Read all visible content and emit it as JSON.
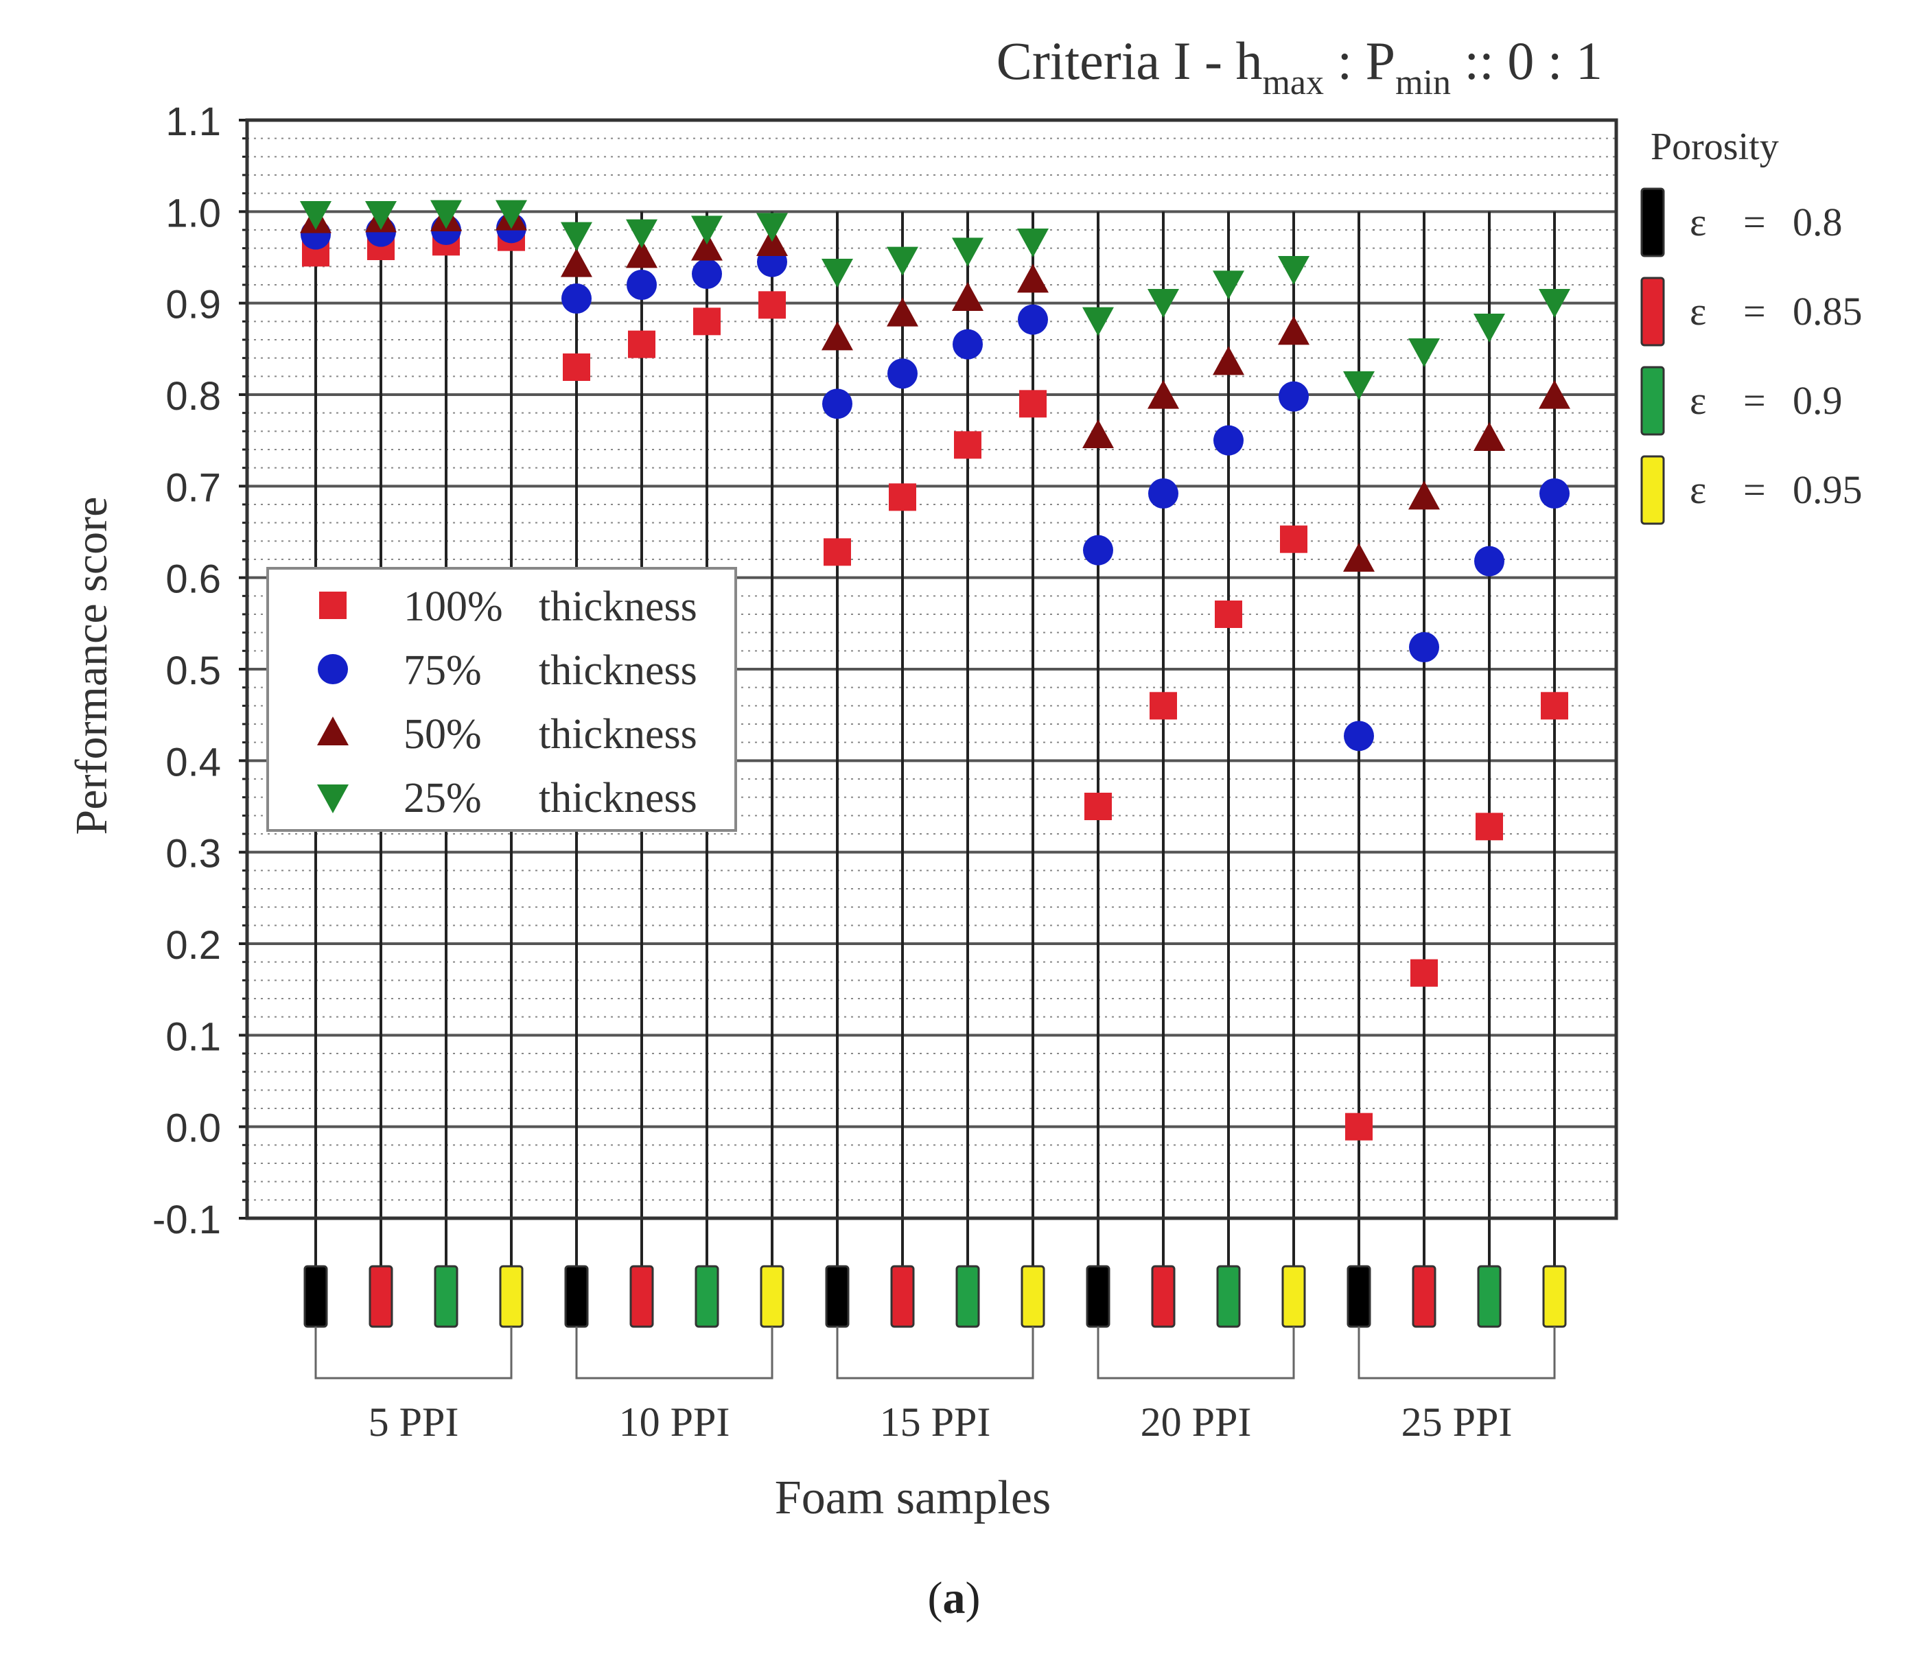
{
  "chart_data": {
    "type": "scatter",
    "title": {
      "main": "Criteria I - h",
      "sub1": "max",
      "mid": " : P",
      "sub2": "min",
      "end": " :: 0 : 1"
    },
    "xlabel": "Foam samples",
    "ylabel": "Performance score",
    "ylim": [
      -0.1,
      1.1
    ],
    "yticks": [
      "1.1",
      "1.0",
      "0.9",
      "0.8",
      "0.7",
      "0.6",
      "0.5",
      "0.4",
      "0.3",
      "0.2",
      "0.1",
      "0.0",
      "-0.1"
    ],
    "grid": true,
    "groups": [
      "5 PPI",
      "10 PPI",
      "15 PPI",
      "20 PPI",
      "25 PPI"
    ],
    "porosity_per_group": [
      "0.8",
      "0.85",
      "0.9",
      "0.95"
    ],
    "porosity_legend": {
      "title": "Porosity",
      "entries": [
        {
          "symbol": "ε",
          "eq": "=",
          "value": "0.8",
          "color": "#000000"
        },
        {
          "symbol": "ε",
          "eq": "=",
          "value": "0.85",
          "color": "#e0232e"
        },
        {
          "symbol": "ε",
          "eq": "=",
          "value": "0.9",
          "color": "#22a046"
        },
        {
          "symbol": "ε",
          "eq": "=",
          "value": "0.95",
          "color": "#f5ec1c"
        }
      ]
    },
    "series": [
      {
        "name": "100% thickness",
        "pct": "100%",
        "word": "thickness",
        "marker": "square",
        "color": "#e0232e",
        "values": [
          0.955,
          0.962,
          0.967,
          0.972,
          0.83,
          0.855,
          0.88,
          0.898,
          0.628,
          0.688,
          0.745,
          0.79,
          0.35,
          0.46,
          0.56,
          0.642,
          0.0,
          0.168,
          0.328,
          0.46
        ]
      },
      {
        "name": "75% thickness",
        "pct": "75%",
        "word": "thickness",
        "marker": "circle",
        "color": "#1420c8",
        "values": [
          0.975,
          0.978,
          0.98,
          0.982,
          0.905,
          0.92,
          0.932,
          0.945,
          0.79,
          0.823,
          0.855,
          0.882,
          0.63,
          0.692,
          0.75,
          0.798,
          0.427,
          0.524,
          0.618,
          0.692
        ]
      },
      {
        "name": "50% thickness",
        "pct": "50%",
        "word": "thickness",
        "marker": "triangle-up",
        "color": "#7a0c0c",
        "values": [
          0.99,
          0.991,
          0.992,
          0.993,
          0.942,
          0.952,
          0.96,
          0.965,
          0.862,
          0.888,
          0.905,
          0.925,
          0.755,
          0.798,
          0.835,
          0.868,
          0.62,
          0.688,
          0.752,
          0.798
        ]
      },
      {
        "name": "25% thickness",
        "pct": "25%",
        "word": "thickness",
        "marker": "triangle-down",
        "color": "#1e8a2e",
        "values": [
          0.998,
          0.998,
          0.999,
          0.999,
          0.975,
          0.978,
          0.982,
          0.985,
          0.935,
          0.948,
          0.958,
          0.968,
          0.882,
          0.902,
          0.922,
          0.938,
          0.812,
          0.848,
          0.875,
          0.902
        ]
      }
    ]
  },
  "caption": {
    "open": "(",
    "label": "a",
    "close": ")"
  },
  "colors": {
    "grid_major": "#555555",
    "grid_minor": "#888888",
    "stem": "#222222",
    "axis": "#222222",
    "text": "#333333"
  }
}
